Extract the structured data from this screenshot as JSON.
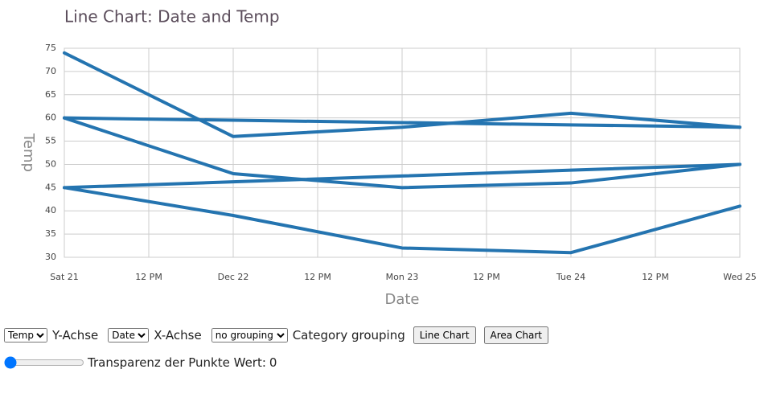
{
  "chart_data": {
    "type": "line",
    "title": "Line Chart: Date and Temp",
    "x_label": "Date",
    "y_label": "Temp",
    "x": [
      21,
      22,
      23,
      24,
      25
    ],
    "xlim": [
      21,
      25
    ],
    "xticks": [
      {
        "value": 21,
        "label": "Sat 21"
      },
      {
        "value": 21.5,
        "label": "12 PM"
      },
      {
        "value": 22,
        "label": "Dec 22"
      },
      {
        "value": 22.5,
        "label": "12 PM"
      },
      {
        "value": 23,
        "label": "Mon 23"
      },
      {
        "value": 23.5,
        "label": "12 PM"
      },
      {
        "value": 24,
        "label": "Tue 24"
      },
      {
        "value": 24.5,
        "label": "12 PM"
      },
      {
        "value": 25,
        "label": "Wed 25"
      }
    ],
    "ylim": [
      30,
      75
    ],
    "yticks": [
      30,
      35,
      40,
      45,
      50,
      55,
      60,
      65,
      70,
      75
    ],
    "grid": true,
    "series": [
      {
        "color": "#2474b0",
        "values": [
          74,
          56,
          58,
          61,
          58
        ]
      },
      {
        "color": "#2474b0",
        "values": [
          60,
          59.5,
          59,
          58.5,
          58
        ]
      },
      {
        "color": "#2474b0",
        "values": [
          60,
          48,
          45,
          46,
          50
        ]
      },
      {
        "color": "#2474b0",
        "values": [
          45,
          46.25,
          47.5,
          48.75,
          50
        ]
      },
      {
        "color": "#2474b0",
        "values": [
          45,
          39,
          32,
          31,
          41
        ]
      }
    ]
  },
  "controls": {
    "y_select": "Temp",
    "y_label": "Y-Achse",
    "x_select": "Date",
    "x_label": "X-Achse",
    "grouping_select": "no grouping",
    "grouping_label": "Category grouping",
    "button_line": "Line Chart",
    "button_area": "Area Chart",
    "opacity_label": "Transparenz der Punkte Wert:",
    "opacity_value": 0
  }
}
